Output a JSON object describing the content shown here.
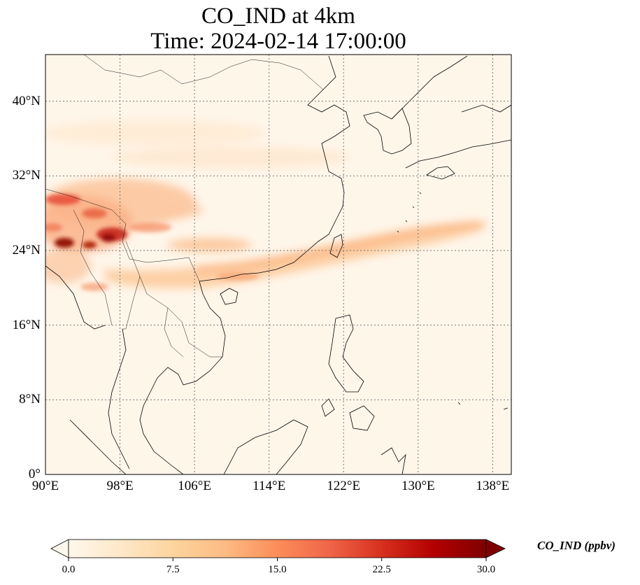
{
  "title_line1": "CO_IND at 4km",
  "title_line2": "Time: 2024-02-14 17:00:00",
  "map": {
    "projection": "PlateCarree",
    "lon_range": [
      90,
      140
    ],
    "lat_range": [
      0,
      45
    ],
    "gridlines": "dotted",
    "lon_ticks": [
      "90°E",
      "98°E",
      "106°E",
      "114°E",
      "122°E",
      "130°E",
      "138°E"
    ],
    "lat_ticks": [
      "0°",
      "8°N",
      "16°N",
      "24°N",
      "32°N",
      "40°N"
    ],
    "lon_tick_values": [
      90,
      98,
      106,
      114,
      122,
      130,
      138
    ],
    "lat_tick_values": [
      0,
      8,
      16,
      24,
      32,
      40
    ]
  },
  "colorbar": {
    "label": "CO_IND (ppbv)",
    "ticks": [
      "0.0",
      "7.5",
      "15.0",
      "22.5",
      "30.0"
    ],
    "tick_values": [
      0,
      7.5,
      15,
      22.5,
      30
    ],
    "range": [
      0,
      30
    ],
    "colormap": "OrRd",
    "colors": [
      "#fff7ec",
      "#fee8c8",
      "#fdd49e",
      "#fdbb84",
      "#fc8d59",
      "#ef6548",
      "#d7301f",
      "#b30000",
      "#7f0000"
    ],
    "extend": "both"
  },
  "coastline_color": "#000000"
}
